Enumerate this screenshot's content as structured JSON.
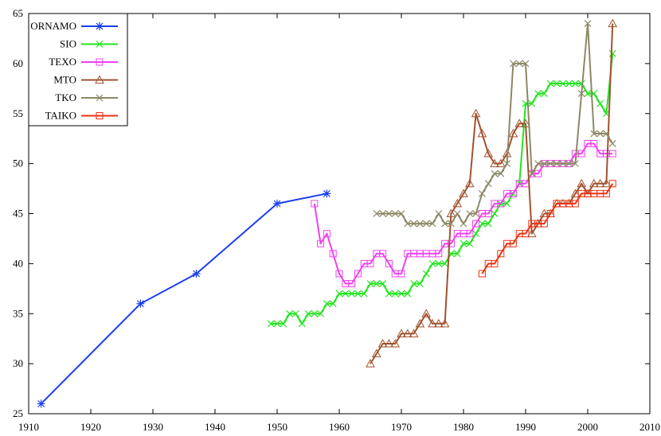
{
  "chart_data": {
    "type": "line",
    "title": "",
    "xlabel": "",
    "ylabel": "",
    "xlim": [
      1910,
      2010
    ],
    "ylim": [
      25,
      65
    ],
    "xticks": [
      1910,
      1920,
      1930,
      1940,
      1950,
      1960,
      1970,
      1980,
      1990,
      2000,
      2010
    ],
    "yticks": [
      25,
      30,
      35,
      40,
      45,
      50,
      55,
      60,
      65
    ],
    "grid": false,
    "legend": "top-left",
    "series": [
      {
        "name": "ORNAMO",
        "color": "#1a3ef0",
        "marker": "star",
        "points": [
          [
            1912,
            26
          ],
          [
            1928,
            36
          ],
          [
            1937,
            39
          ],
          [
            1950,
            46
          ],
          [
            1958,
            47
          ]
        ]
      },
      {
        "name": "SIO",
        "color": "#22e51f",
        "marker": "x",
        "points": [
          [
            1949,
            34
          ],
          [
            1950,
            34
          ],
          [
            1951,
            34
          ],
          [
            1952,
            35
          ],
          [
            1953,
            35
          ],
          [
            1954,
            34
          ],
          [
            1955,
            35
          ],
          [
            1956,
            35
          ],
          [
            1957,
            35
          ],
          [
            1958,
            36
          ],
          [
            1959,
            36
          ],
          [
            1960,
            37
          ],
          [
            1961,
            37
          ],
          [
            1962,
            37
          ],
          [
            1963,
            37
          ],
          [
            1964,
            37
          ],
          [
            1965,
            38
          ],
          [
            1966,
            38
          ],
          [
            1967,
            38
          ],
          [
            1968,
            37
          ],
          [
            1969,
            37
          ],
          [
            1970,
            37
          ],
          [
            1971,
            37
          ],
          [
            1972,
            38
          ],
          [
            1973,
            38
          ],
          [
            1974,
            39
          ],
          [
            1975,
            40
          ],
          [
            1976,
            40
          ],
          [
            1977,
            40
          ],
          [
            1978,
            41
          ],
          [
            1979,
            41
          ],
          [
            1980,
            42
          ],
          [
            1981,
            42
          ],
          [
            1982,
            43
          ],
          [
            1983,
            44
          ],
          [
            1984,
            44
          ],
          [
            1985,
            45
          ],
          [
            1986,
            46
          ],
          [
            1987,
            46
          ],
          [
            1988,
            47
          ],
          [
            1989,
            48
          ],
          [
            1990,
            56
          ],
          [
            1991,
            56
          ],
          [
            1992,
            57
          ],
          [
            1993,
            57
          ],
          [
            1994,
            58
          ],
          [
            1995,
            58
          ],
          [
            1996,
            58
          ],
          [
            1997,
            58
          ],
          [
            1998,
            58
          ],
          [
            1999,
            58
          ],
          [
            2000,
            57
          ],
          [
            2001,
            57
          ],
          [
            2002,
            56
          ],
          [
            2003,
            55
          ],
          [
            2004,
            61
          ]
        ]
      },
      {
        "name": "TEXO",
        "color": "#f040f0",
        "marker": "square",
        "points": [
          [
            1956,
            46
          ],
          [
            1957,
            42
          ],
          [
            1958,
            43
          ],
          [
            1959,
            41
          ],
          [
            1960,
            39
          ],
          [
            1961,
            38
          ],
          [
            1962,
            38
          ],
          [
            1963,
            39
          ],
          [
            1964,
            40
          ],
          [
            1965,
            40
          ],
          [
            1966,
            41
          ],
          [
            1967,
            41
          ],
          [
            1968,
            40
          ],
          [
            1969,
            39
          ],
          [
            1970,
            39
          ],
          [
            1971,
            41
          ],
          [
            1972,
            41
          ],
          [
            1973,
            41
          ],
          [
            1974,
            41
          ],
          [
            1975,
            41
          ],
          [
            1976,
            41
          ],
          [
            1977,
            42
          ],
          [
            1978,
            42
          ],
          [
            1979,
            43
          ],
          [
            1980,
            43
          ],
          [
            1981,
            43
          ],
          [
            1982,
            44
          ],
          [
            1983,
            45
          ],
          [
            1984,
            45
          ],
          [
            1985,
            46
          ],
          [
            1986,
            46
          ],
          [
            1987,
            47
          ],
          [
            1988,
            47
          ],
          [
            1989,
            48
          ],
          [
            1990,
            48
          ],
          [
            1991,
            49
          ],
          [
            1992,
            49
          ],
          [
            1993,
            50
          ],
          [
            1994,
            50
          ],
          [
            1995,
            50
          ],
          [
            1996,
            50
          ],
          [
            1997,
            50
          ],
          [
            1998,
            51
          ],
          [
            1999,
            51
          ],
          [
            2000,
            52
          ],
          [
            2001,
            52
          ],
          [
            2002,
            51
          ],
          [
            2003,
            51
          ],
          [
            2004,
            51
          ]
        ]
      },
      {
        "name": "MTO",
        "color": "#a0522d",
        "marker": "triangle",
        "points": [
          [
            1965,
            30
          ],
          [
            1966,
            31
          ],
          [
            1967,
            32
          ],
          [
            1968,
            32
          ],
          [
            1969,
            32
          ],
          [
            1970,
            33
          ],
          [
            1971,
            33
          ],
          [
            1972,
            33
          ],
          [
            1973,
            34
          ],
          [
            1974,
            35
          ],
          [
            1975,
            34
          ],
          [
            1976,
            34
          ],
          [
            1977,
            34
          ],
          [
            1978,
            45
          ],
          [
            1979,
            46
          ],
          [
            1980,
            47
          ],
          [
            1981,
            48
          ],
          [
            1982,
            55
          ],
          [
            1983,
            53
          ],
          [
            1984,
            51
          ],
          [
            1985,
            50
          ],
          [
            1986,
            50
          ],
          [
            1987,
            51
          ],
          [
            1988,
            53
          ],
          [
            1989,
            54
          ],
          [
            1990,
            54
          ],
          [
            1991,
            43
          ],
          [
            1992,
            44
          ],
          [
            1993,
            45
          ],
          [
            1994,
            45
          ],
          [
            1995,
            46
          ],
          [
            1996,
            46
          ],
          [
            1997,
            46
          ],
          [
            1998,
            47
          ],
          [
            1999,
            48
          ],
          [
            2000,
            47
          ],
          [
            2001,
            48
          ],
          [
            2002,
            48
          ],
          [
            2003,
            48
          ],
          [
            2004,
            64
          ]
        ]
      },
      {
        "name": "TKO",
        "color": "#8c8866",
        "marker": "x",
        "points": [
          [
            1966,
            45
          ],
          [
            1967,
            45
          ],
          [
            1968,
            45
          ],
          [
            1969,
            45
          ],
          [
            1970,
            45
          ],
          [
            1971,
            44
          ],
          [
            1972,
            44
          ],
          [
            1973,
            44
          ],
          [
            1974,
            44
          ],
          [
            1975,
            44
          ],
          [
            1976,
            45
          ],
          [
            1977,
            44
          ],
          [
            1978,
            44
          ],
          [
            1979,
            45
          ],
          [
            1980,
            44
          ],
          [
            1981,
            45
          ],
          [
            1982,
            45
          ],
          [
            1983,
            47
          ],
          [
            1984,
            48
          ],
          [
            1985,
            49
          ],
          [
            1986,
            49
          ],
          [
            1987,
            50
          ],
          [
            1988,
            60
          ],
          [
            1989,
            60
          ],
          [
            1990,
            60
          ],
          [
            1991,
            49
          ],
          [
            1992,
            50
          ],
          [
            1993,
            50
          ],
          [
            1994,
            50
          ],
          [
            1995,
            50
          ],
          [
            1996,
            50
          ],
          [
            1997,
            50
          ],
          [
            1998,
            50
          ],
          [
            1999,
            57
          ],
          [
            2000,
            64
          ],
          [
            2001,
            53
          ],
          [
            2002,
            53
          ],
          [
            2003,
            53
          ],
          [
            2004,
            52
          ]
        ]
      },
      {
        "name": "TAIKO",
        "color": "#f03010",
        "marker": "square",
        "points": [
          [
            1983,
            39
          ],
          [
            1984,
            40
          ],
          [
            1985,
            40
          ],
          [
            1986,
            41
          ],
          [
            1987,
            42
          ],
          [
            1988,
            42
          ],
          [
            1989,
            43
          ],
          [
            1990,
            43
          ],
          [
            1991,
            44
          ],
          [
            1992,
            44
          ],
          [
            1993,
            44
          ],
          [
            1994,
            45
          ],
          [
            1995,
            46
          ],
          [
            1996,
            46
          ],
          [
            1997,
            46
          ],
          [
            1998,
            46
          ],
          [
            1999,
            47
          ],
          [
            2000,
            47
          ],
          [
            2001,
            47
          ],
          [
            2002,
            47
          ],
          [
            2003,
            47
          ],
          [
            2004,
            48
          ]
        ]
      }
    ]
  }
}
